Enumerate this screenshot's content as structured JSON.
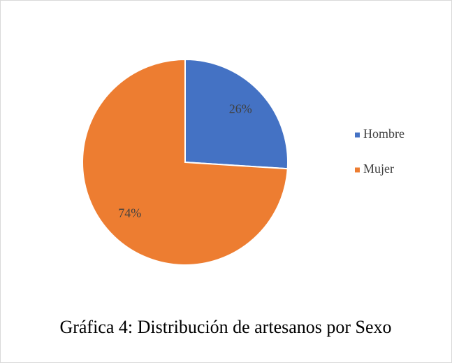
{
  "chart_data": {
    "type": "pie",
    "title": "Gráfica 4: Distribución de artesanos por Sexo",
    "categories": [
      "Hombre",
      "Mujer"
    ],
    "values": [
      26,
      74
    ],
    "value_labels": [
      "26%",
      "74%"
    ],
    "colors": [
      "#4472c4",
      "#ed7d31"
    ],
    "legend": "right"
  }
}
